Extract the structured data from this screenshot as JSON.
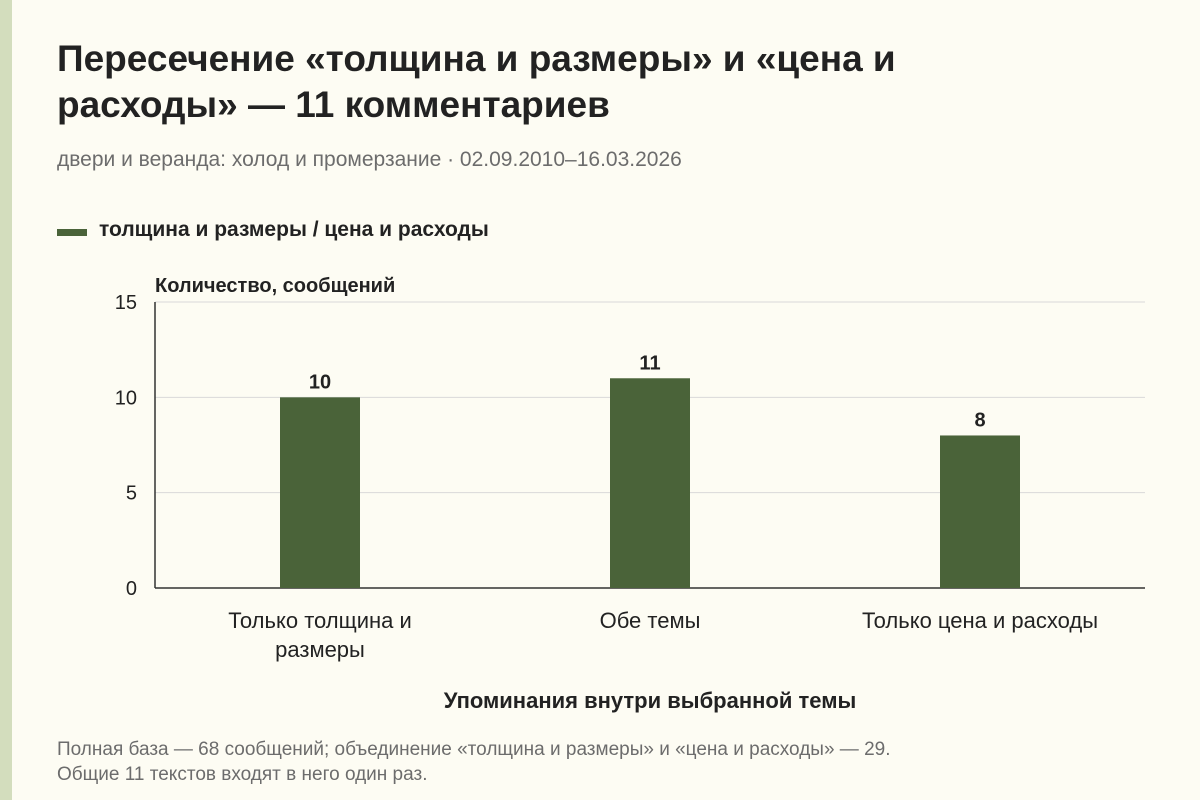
{
  "header": {
    "title_line1": "Пересечение «толщина и размеры» и «цена и",
    "title_line2": "расходы» — 11 комментариев",
    "subtitle": "двери и веранда: холод и промерзание · 02.09.2010–16.03.2026"
  },
  "footnote": {
    "line1": "Полная база — 68 сообщений; объединение «толщина и размеры» и «цена и расходы» — 29.",
    "line2": "Общие 11 текстов входят в него один раз."
  },
  "colors": {
    "bar": "#4a6339",
    "grid": "#d9d9d9",
    "axis": "#333333",
    "text": "#222222",
    "muted": "#6c6c6c",
    "background": "#fdfcf3"
  },
  "chart_data": {
    "type": "bar",
    "title": "",
    "xlabel": "Упоминания внутри выбранной темы",
    "ylabel": "Количество, сообщений",
    "categories": [
      [
        "Только толщина и",
        "размеры"
      ],
      [
        "Обе темы"
      ],
      [
        "Только цена и расходы"
      ]
    ],
    "series": [
      {
        "name": "толщина и размеры / цена и расходы",
        "values": [
          10,
          11,
          8
        ]
      }
    ],
    "ylim": [
      0,
      15
    ],
    "yticks": [
      0,
      5,
      10,
      15
    ],
    "grid": true,
    "legend": "top-left"
  }
}
